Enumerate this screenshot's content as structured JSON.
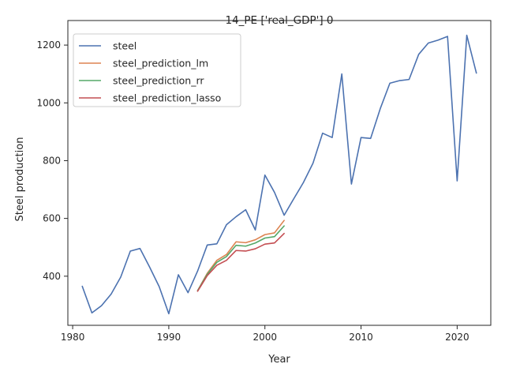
{
  "chart_data": {
    "type": "line",
    "title": "14_PE ['real_GDP'] 0",
    "xlabel": "Year",
    "ylabel": "Steel production",
    "xlim": [
      1979.5,
      2023.5
    ],
    "ylim": [
      230,
      1285
    ],
    "xticks": [
      1980,
      1990,
      2000,
      2010,
      2020
    ],
    "yticks": [
      400,
      600,
      800,
      1000,
      1200
    ],
    "grid": false,
    "legend_position": "upper left",
    "series": [
      {
        "name": "steel",
        "color": "#4c72b0",
        "x": [
          1981,
          1982,
          1983,
          1984,
          1985,
          1986,
          1987,
          1988,
          1989,
          1990,
          1991,
          1992,
          1993,
          1994,
          1995,
          1996,
          1997,
          1998,
          1999,
          2000,
          2001,
          2002,
          2003,
          2004,
          2005,
          2006,
          2007,
          2008,
          2009,
          2010,
          2011,
          2012,
          2013,
          2014,
          2015,
          2016,
          2017,
          2018,
          2019,
          2020,
          2021,
          2022
        ],
        "y": [
          365,
          273,
          298,
          338,
          397,
          487,
          496,
          432,
          364,
          270,
          405,
          343,
          418,
          508,
          512,
          578,
          606,
          630,
          560,
          750,
          690,
          611,
          668,
          724,
          791,
          895,
          880,
          1100,
          719,
          880,
          877,
          980,
          1068,
          1077,
          1081,
          1168,
          1207,
          1217,
          1230,
          730,
          1234,
          1103
        ]
      },
      {
        "name": "steel_prediction_lm",
        "color": "#dd8452",
        "x": [
          1993,
          1994,
          1995,
          1996,
          1997,
          1998,
          1999,
          2000,
          2001,
          2002
        ],
        "y": [
          350,
          410,
          455,
          475,
          519,
          516,
          526,
          544,
          550,
          593
        ]
      },
      {
        "name": "steel_prediction_rr",
        "color": "#55a868",
        "x": [
          1993,
          1994,
          1995,
          1996,
          1997,
          1998,
          1999,
          2000,
          2001,
          2002
        ],
        "y": [
          350,
          407,
          448,
          468,
          507,
          504,
          515,
          532,
          537,
          574
        ]
      },
      {
        "name": "steel_prediction_lasso",
        "color": "#c44e52",
        "x": [
          1993,
          1994,
          1995,
          1996,
          1997,
          1998,
          1999,
          2000,
          2001,
          2002
        ],
        "y": [
          348,
          402,
          438,
          455,
          489,
          487,
          495,
          511,
          515,
          548
        ]
      }
    ]
  }
}
